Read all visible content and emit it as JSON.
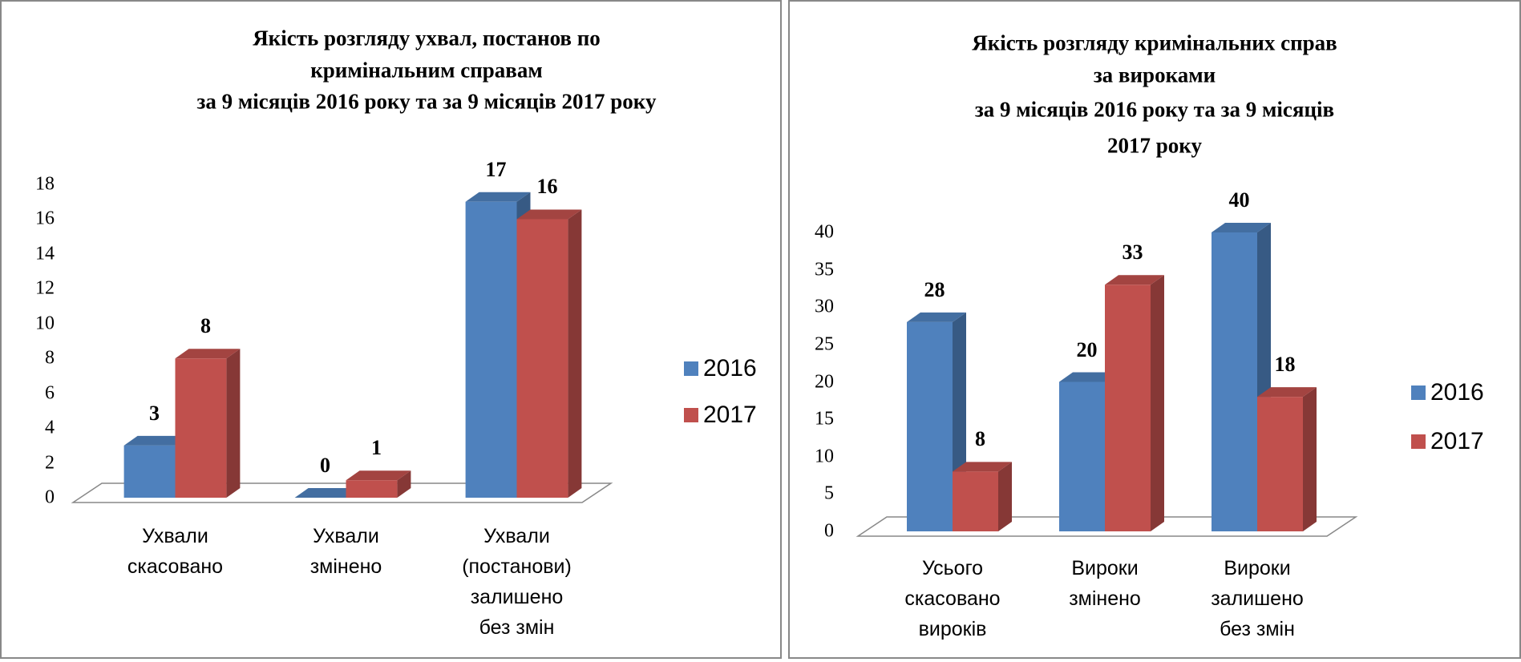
{
  "chart_data": [
    {
      "type": "bar",
      "title": [
        "Якість розгляду ухвал, постанов по",
        "кримінальним справам",
        "за 9 місяців 2016 року та за 9 місяців 2017 року"
      ],
      "categories": [
        "Ухвали скасовано",
        "Ухвали змінено",
        "Ухвали (постанови) залишено без змін"
      ],
      "series": [
        {
          "name": "2016",
          "color": "#4f81bd",
          "values": [
            3,
            0,
            17
          ]
        },
        {
          "name": "2017",
          "color": "#c0504d",
          "values": [
            8,
            1,
            16
          ]
        }
      ],
      "ylim": [
        0,
        18
      ],
      "yticks": [
        0,
        2,
        4,
        6,
        8,
        10,
        12,
        14,
        16,
        18
      ],
      "legend": "right"
    },
    {
      "type": "bar",
      "title": [
        "Якість розгляду кримінальних справ",
        "за вироками",
        "за 9 місяців 2016 року та за 9 місяців",
        "2017 року"
      ],
      "categories": [
        "Усього скасовано вироків",
        "Вироки змінено",
        "Вироки залишено без змін"
      ],
      "series": [
        {
          "name": "2016",
          "color": "#4f81bd",
          "values": [
            28,
            20,
            40
          ]
        },
        {
          "name": "2017",
          "color": "#c0504d",
          "values": [
            8,
            33,
            18
          ]
        }
      ],
      "ylim": [
        0,
        40
      ],
      "yticks": [
        0,
        5,
        10,
        15,
        20,
        25,
        30,
        35,
        40
      ],
      "legend": "right"
    }
  ]
}
